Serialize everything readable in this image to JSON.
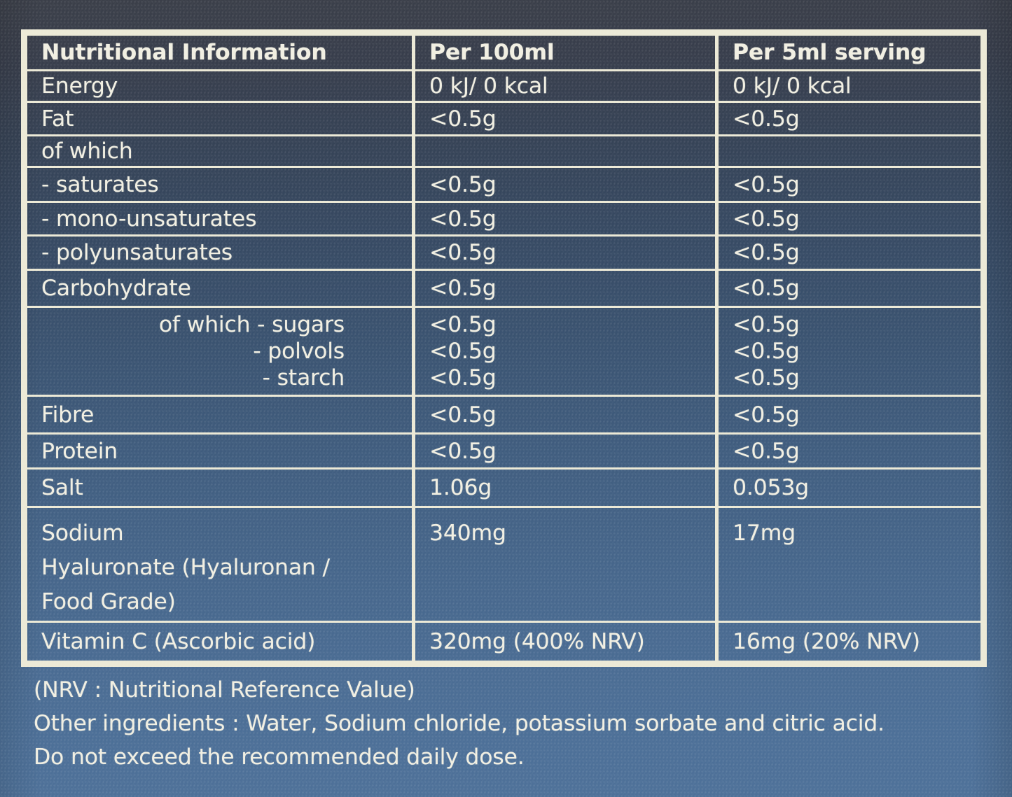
{
  "table": {
    "headers": [
      "Nutritional Information",
      "Per 100ml",
      "Per 5ml serving"
    ],
    "rows": [
      {
        "label": "Energy",
        "per_100ml": "0 kJ/ 0 kcal",
        "per_5ml": "0 kJ/ 0 kcal"
      },
      {
        "label": "Fat",
        "per_100ml": "<0.5g",
        "per_5ml": "<0.5g"
      },
      {
        "label": "of which",
        "per_100ml": "",
        "per_5ml": ""
      },
      {
        "label": "- saturates",
        "per_100ml": "<0.5g",
        "per_5ml": "<0.5g"
      },
      {
        "label": "- mono-unsaturates",
        "per_100ml": "<0.5g",
        "per_5ml": "<0.5g"
      },
      {
        "label": "- polyunsaturates",
        "per_100ml": "<0.5g",
        "per_5ml": "<0.5g"
      },
      {
        "label": "Carbohydrate",
        "per_100ml": "<0.5g",
        "per_5ml": "<0.5g"
      },
      {
        "label": "of which - sugars\n- polvols\n- starch",
        "per_100ml": "<0.5g\n<0.5g\n<0.5g",
        "per_5ml": "<0.5g\n<0.5g\n<0.5g"
      },
      {
        "label": "Fibre",
        "per_100ml": "<0.5g",
        "per_5ml": "<0.5g"
      },
      {
        "label": "Protein",
        "per_100ml": "<0.5g",
        "per_5ml": "<0.5g"
      },
      {
        "label": "Salt",
        "per_100ml": "1.06g",
        "per_5ml": "0.053g"
      },
      {
        "label": "Sodium\nHyaluronate (Hyaluronan /\nFood Grade)",
        "per_100ml": "340mg",
        "per_5ml": "17mg"
      },
      {
        "label": "Vitamin C (Ascorbic acid)",
        "per_100ml": "320mg (400% NRV)",
        "per_5ml": "16mg (20% NRV)"
      }
    ]
  },
  "notes": {
    "nrv": "(NRV : Nutritional Reference Value)",
    "other_ingredients": "Other ingredients : Water, Sodium chloride, potassium sorbate and citric acid.",
    "daily_dose": "Do not exceed the recommended daily dose."
  },
  "colors": {
    "background_top": "#3b3f49",
    "background_bottom": "#4e7199",
    "grid_lines": "#ece9d6",
    "text": "#f1efe2"
  }
}
